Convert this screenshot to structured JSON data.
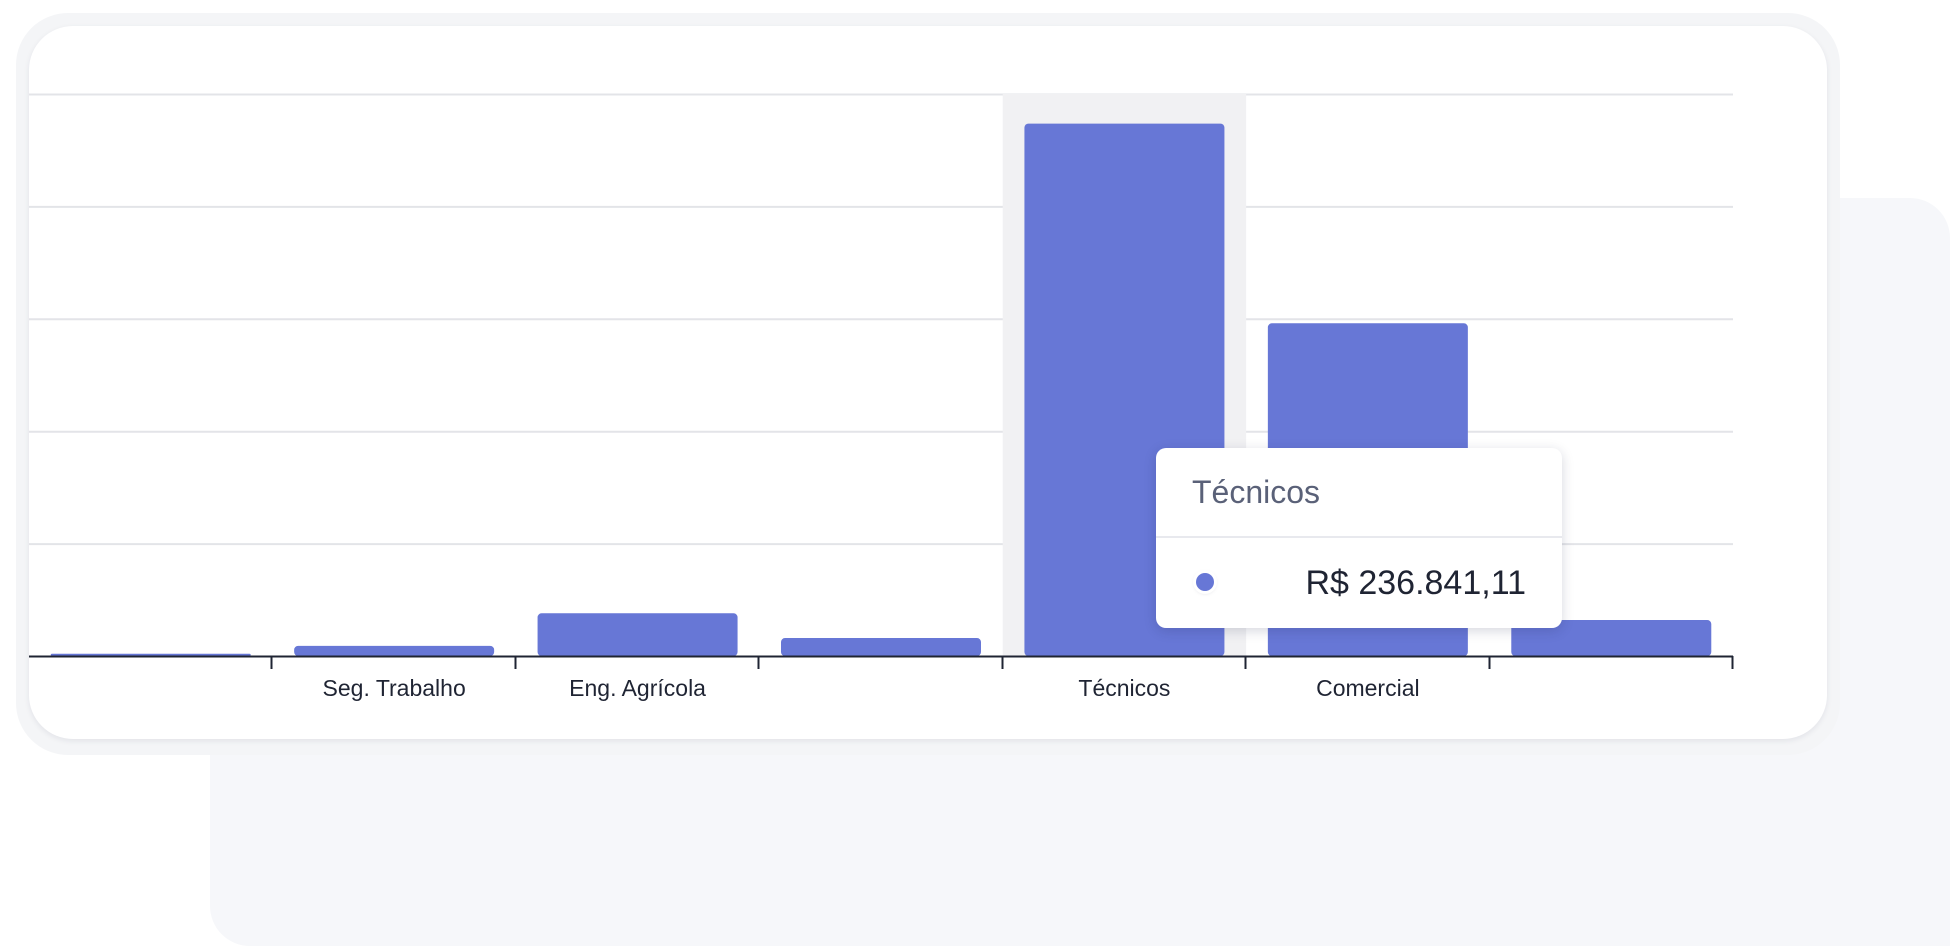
{
  "chart_data": {
    "type": "bar",
    "categories": [
      "",
      "Seg. Trabalho",
      "Eng. Agrícola",
      "",
      "Técnicos",
      "Comercial",
      ""
    ],
    "values": [
      1000,
      4500,
      19000,
      8000,
      236841.11,
      148000,
      16000
    ],
    "ylim": [
      0,
      250000
    ],
    "grid": true,
    "bar_color": "#6777d6",
    "highlight_index": 4,
    "highlight_color": "#f1f1f3"
  },
  "tooltip": {
    "title": "Técnicos",
    "value": "R$ 236.841,11",
    "dot_color": "#6777d6"
  }
}
